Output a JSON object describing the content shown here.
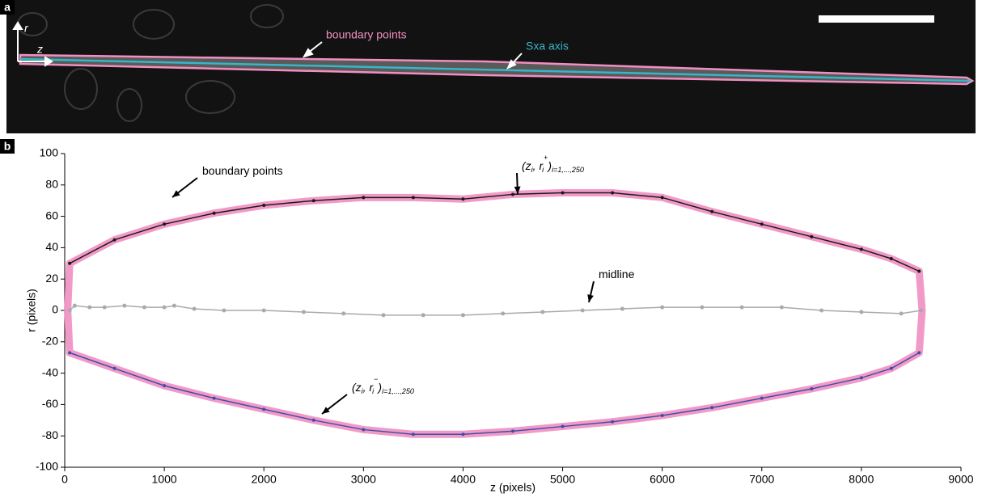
{
  "panel_a": {
    "label": "a",
    "axis_r": "r",
    "axis_z": "z",
    "annotations": [
      "boundary points",
      "Sxa axis"
    ]
  },
  "chart_data": {
    "type": "line",
    "panel_label": "b",
    "xlabel": "z (pixels)",
    "ylabel": "r (pixels)",
    "xlim": [
      0,
      9000
    ],
    "xticks": [
      0,
      1000,
      2000,
      3000,
      4000,
      5000,
      6000,
      7000,
      8000,
      9000
    ],
    "ylim": [
      -100,
      100
    ],
    "yticks": [
      -100,
      -80,
      -60,
      -40,
      -20,
      0,
      20,
      40,
      60,
      80,
      100
    ],
    "annotations": [
      {
        "parts": [
          "boundary points"
        ]
      },
      {
        "parts": [
          "(z",
          "i",
          ", r",
          "i",
          "+",
          ")",
          "i=1,...,250"
        ]
      },
      {
        "parts": [
          "midline"
        ]
      },
      {
        "parts": [
          "(z",
          "i",
          ", r",
          "i",
          "−",
          ")",
          "i=1,...,250"
        ]
      }
    ],
    "series": [
      {
        "name": "boundary points",
        "color": "#f18fc1",
        "style": "band",
        "x": [
          50,
          500,
          1000,
          1500,
          2000,
          2500,
          3000,
          3500,
          4000,
          4500,
          5000,
          5500,
          6000,
          6500,
          7000,
          7500,
          8000,
          8300,
          8580,
          8610,
          8580,
          8300,
          8000,
          7500,
          7000,
          6500,
          6000,
          5500,
          5000,
          4500,
          4000,
          3500,
          3000,
          2500,
          2000,
          1500,
          1000,
          500,
          50,
          30,
          50
        ],
        "values": [
          30,
          45,
          55,
          62,
          67,
          70,
          72,
          72,
          71,
          74,
          75,
          75,
          72,
          63,
          55,
          47,
          39,
          33,
          25,
          0,
          -27,
          -37,
          -43,
          -50,
          -56,
          -62,
          -67,
          -71,
          -74,
          -77,
          -79,
          -79,
          -76,
          -70,
          -63,
          -56,
          -48,
          -37,
          -27,
          0,
          30
        ]
      },
      {
        "color": "#1a1a1a",
        "style": "dots",
        "x": [
          50,
          500,
          1000,
          1500,
          2000,
          2500,
          3000,
          3500,
          4000,
          4500,
          5000,
          5500,
          6000,
          6500,
          7000,
          7500,
          8000,
          8300,
          8580
        ],
        "values": [
          30,
          45,
          55,
          62,
          67,
          70,
          72,
          72,
          71,
          74,
          75,
          75,
          72,
          63,
          55,
          47,
          39,
          33,
          25
        ]
      },
      {
        "color": "#3f4fa8",
        "style": "dots",
        "x": [
          50,
          500,
          1000,
          1500,
          2000,
          2500,
          3000,
          3500,
          4000,
          4500,
          5000,
          5500,
          6000,
          6500,
          7000,
          7500,
          8000,
          8300,
          8580
        ],
        "values": [
          -27,
          -37,
          -48,
          -56,
          -63,
          -70,
          -76,
          -79,
          -79,
          -77,
          -74,
          -71,
          -67,
          -62,
          -56,
          -50,
          -43,
          -37,
          -27
        ]
      },
      {
        "name": "midline",
        "color": "#aaaaaa",
        "style": "markers",
        "x": [
          50,
          100,
          250,
          400,
          600,
          800,
          1000,
          1100,
          1300,
          1600,
          2000,
          2400,
          2800,
          3200,
          3600,
          4000,
          4400,
          4800,
          5200,
          5600,
          6000,
          6400,
          6800,
          7200,
          7600,
          8000,
          8400,
          8600
        ],
        "values": [
          0,
          3,
          2,
          2,
          3,
          2,
          2,
          3,
          1,
          0,
          0,
          -1,
          -2,
          -3,
          -3,
          -3,
          -2,
          -1,
          0,
          1,
          2,
          2,
          2,
          2,
          0,
          -1,
          -2,
          0
        ]
      }
    ]
  }
}
